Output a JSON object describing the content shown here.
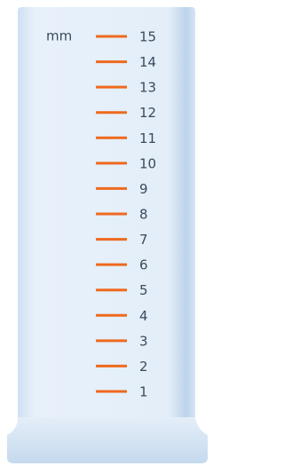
{
  "unit": "mm",
  "scale": {
    "labels": [
      1,
      2,
      3,
      4,
      5,
      6,
      7,
      8,
      9,
      10,
      11,
      12,
      13,
      14,
      15
    ]
  }
}
